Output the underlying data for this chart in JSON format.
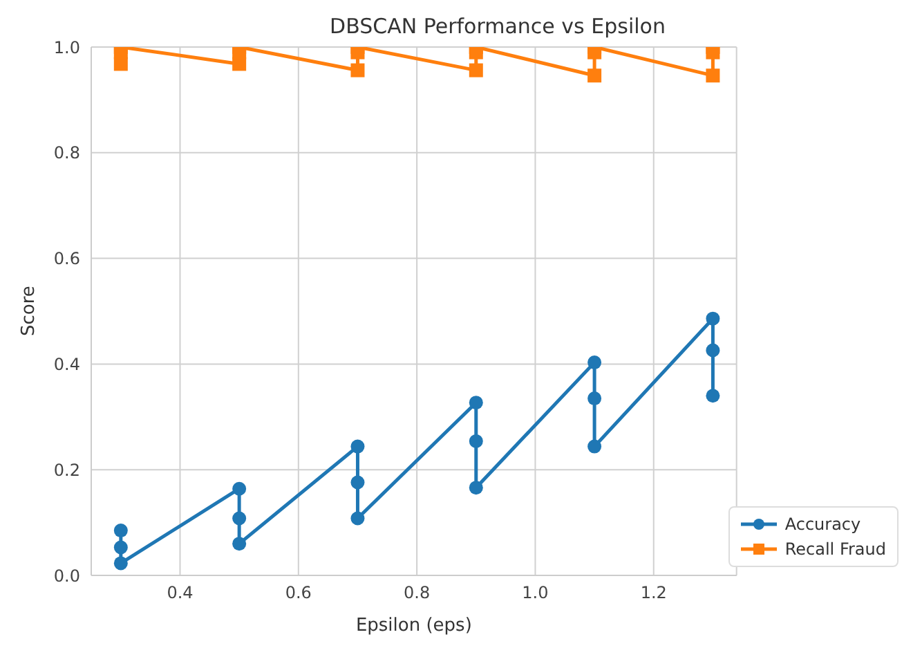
{
  "chart_data": {
    "type": "line",
    "title": "DBSCAN Performance vs Epsilon",
    "xlabel": "Epsilon (eps)",
    "ylabel": "Score",
    "xlim": [
      0.25,
      1.34
    ],
    "xticks": [
      0.4,
      0.6,
      0.8,
      {
        "value": 1,
        "label": "1.0"
      },
      1.2
    ],
    "ylim": [
      0,
      1
    ],
    "yticks": [
      {
        "value": 0,
        "label": "0.0"
      },
      0.2,
      0.4,
      0.6,
      0.8,
      {
        "value": 1,
        "label": "1.0"
      }
    ],
    "grid": true,
    "legend": "bottom right",
    "series": [
      {
        "name": "Accuracy",
        "color": "#1f77b4",
        "marker": "circle",
        "x": [
          0.3,
          0.3,
          0.3,
          0.5,
          0.5,
          0.5,
          0.7,
          0.7,
          0.7,
          0.9,
          0.9,
          0.9,
          1.1,
          1.1,
          1.1,
          1.3,
          1.3,
          1.3
        ],
        "values": [
          0.085,
          0.053,
          0.023,
          0.164,
          0.108,
          0.06,
          0.244,
          0.176,
          0.108,
          0.327,
          0.254,
          0.166,
          0.403,
          0.335,
          0.244,
          0.486,
          0.426,
          0.34
        ]
      },
      {
        "name": "Recall Fraud",
        "color": "#ff7f0e",
        "marker": "square",
        "x": [
          0.3,
          0.3,
          0.3,
          0.5,
          0.5,
          0.5,
          0.7,
          0.7,
          0.7,
          0.9,
          0.9,
          0.9,
          1.1,
          1.1,
          1.1,
          1.3,
          1.3,
          1.3
        ],
        "values": [
          0.968,
          0.99,
          1.0,
          0.968,
          0.99,
          1.0,
          0.956,
          0.99,
          1.0,
          0.956,
          0.99,
          1.0,
          0.946,
          0.99,
          1.0,
          0.946,
          0.99,
          1.0
        ]
      }
    ]
  }
}
